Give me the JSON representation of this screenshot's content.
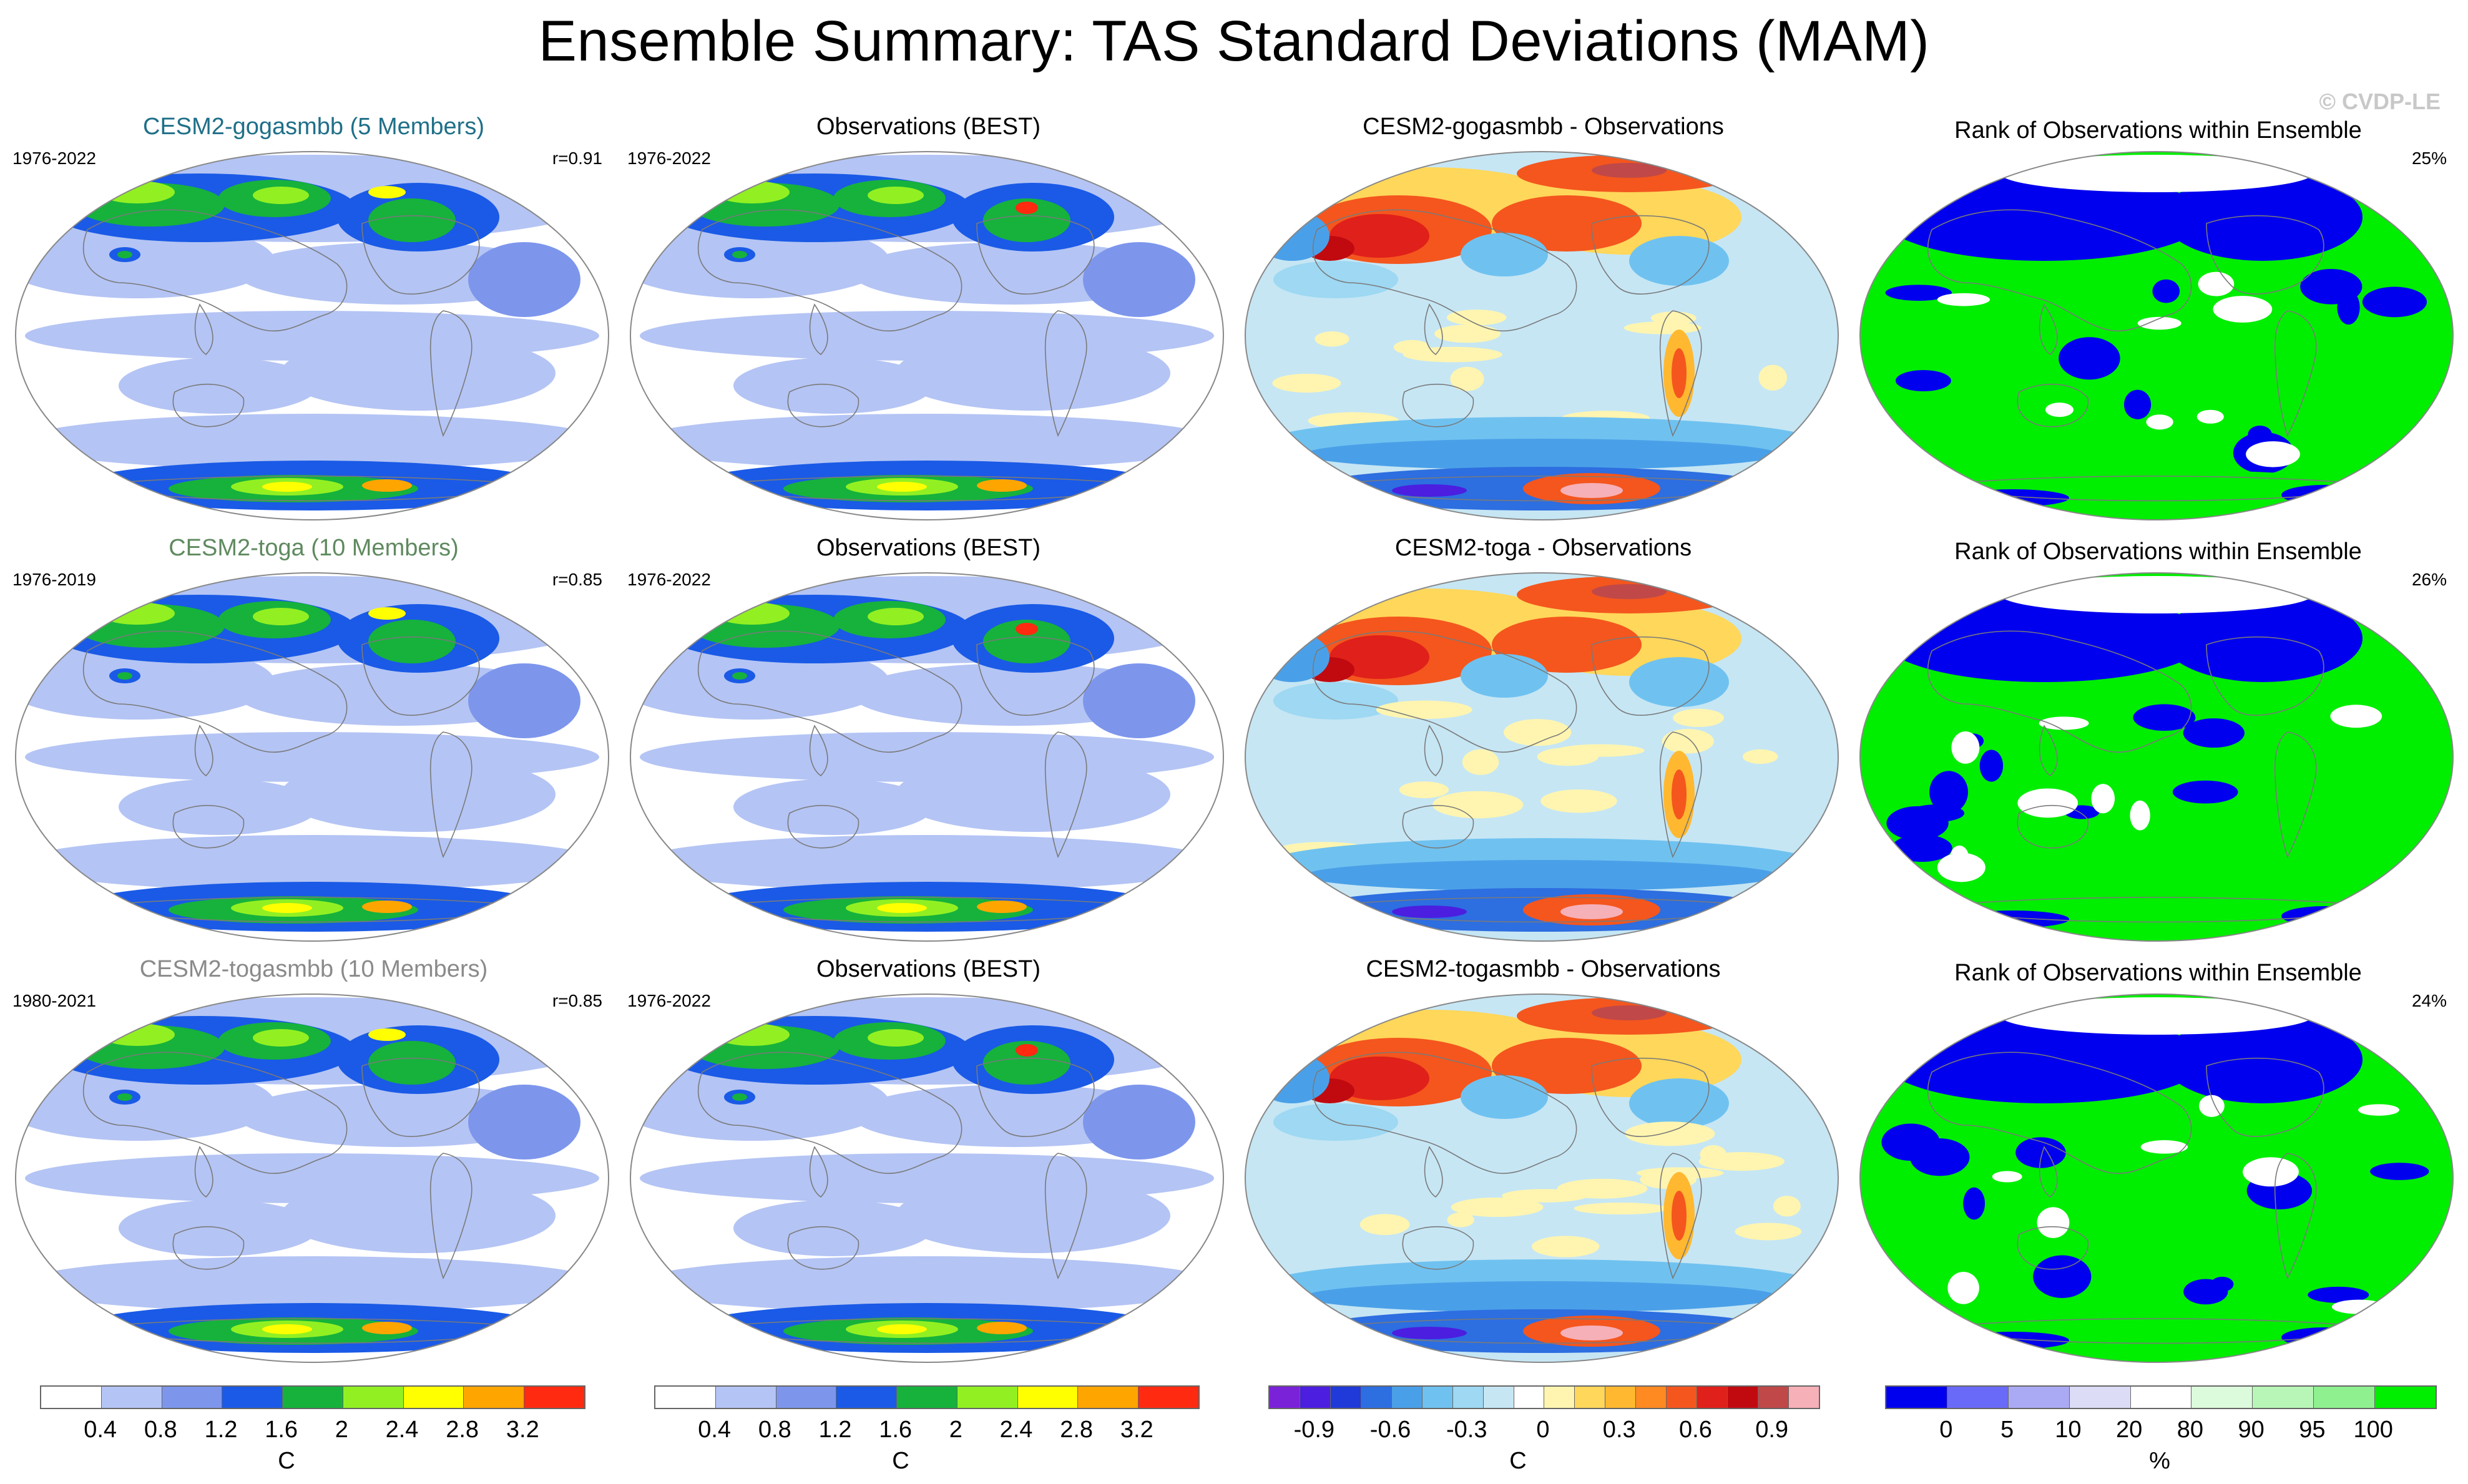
{
  "title": "Ensemble Summary: TAS Standard Deviations (MAM)",
  "copyright": "© CVDP-LE",
  "rows": [
    {
      "model": {
        "title": "CESM2-gogasmbb (5 Members)",
        "title_color": "#1f6f88",
        "years": "1976-2022",
        "corr": "r=0.91"
      },
      "obs": {
        "title": "Observations (BEST)",
        "years": "1976-2022"
      },
      "diff": {
        "title": "CESM2-gogasmbb - Observations"
      },
      "rank": {
        "title": "Rank of Observations within Ensemble",
        "pct": "25%"
      }
    },
    {
      "model": {
        "title": "CESM2-toga (10 Members)",
        "title_color": "#5f8a5f",
        "years": "1976-2019",
        "corr": "r=0.85"
      },
      "obs": {
        "title": "Observations (BEST)",
        "years": "1976-2022"
      },
      "diff": {
        "title": "CESM2-toga - Observations"
      },
      "rank": {
        "title": "Rank of Observations within Ensemble",
        "pct": "26%"
      }
    },
    {
      "model": {
        "title": "CESM2-togasmbb (10 Members)",
        "title_color": "#8a8a8a",
        "years": "1980-2021",
        "corr": "r=0.85"
      },
      "obs": {
        "title": "Observations (BEST)",
        "years": "1976-2022"
      },
      "diff": {
        "title": "CESM2-togasmbb - Observations"
      },
      "rank": {
        "title": "Rank of Observations within Ensemble",
        "pct": "24%"
      }
    }
  ],
  "colorbars": {
    "stddev": {
      "colors": [
        "#ffffff",
        "#b4c4f4",
        "#7d96ec",
        "#1a5ae6",
        "#16b23c",
        "#92f022",
        "#ffff00",
        "#ffa500",
        "#ff2a10"
      ],
      "labels": [
        "0.4",
        "0.8",
        "1.2",
        "1.6",
        "2",
        "2.4",
        "2.8",
        "3.2"
      ],
      "unit": "C"
    },
    "diff": {
      "colors": [
        "#7a22d8",
        "#4b1ee0",
        "#1f3ad8",
        "#2d6ee0",
        "#4aa0e8",
        "#6fc2f0",
        "#9ed8f2",
        "#c6e6f4",
        "#ffffff",
        "#fff5b0",
        "#ffd75a",
        "#ffb830",
        "#ff8a22",
        "#f4561e",
        "#e0201a",
        "#c00a10",
        "#c04848",
        "#f6b0b8"
      ],
      "labels": [
        "-0.9",
        "-0.6",
        "-0.3",
        "0",
        "0.3",
        "0.6",
        "0.9"
      ],
      "unit": "C"
    },
    "rank": {
      "colors": [
        "#0000ee",
        "#6a6af8",
        "#aaaaf4",
        "#dcdcf6",
        "#ffffff",
        "#dcfadc",
        "#b8f6b8",
        "#8ef08e",
        "#00ee00"
      ],
      "labels": [
        "0",
        "5",
        "10",
        "20",
        "80",
        "90",
        "95",
        "100"
      ],
      "unit": "%"
    }
  }
}
